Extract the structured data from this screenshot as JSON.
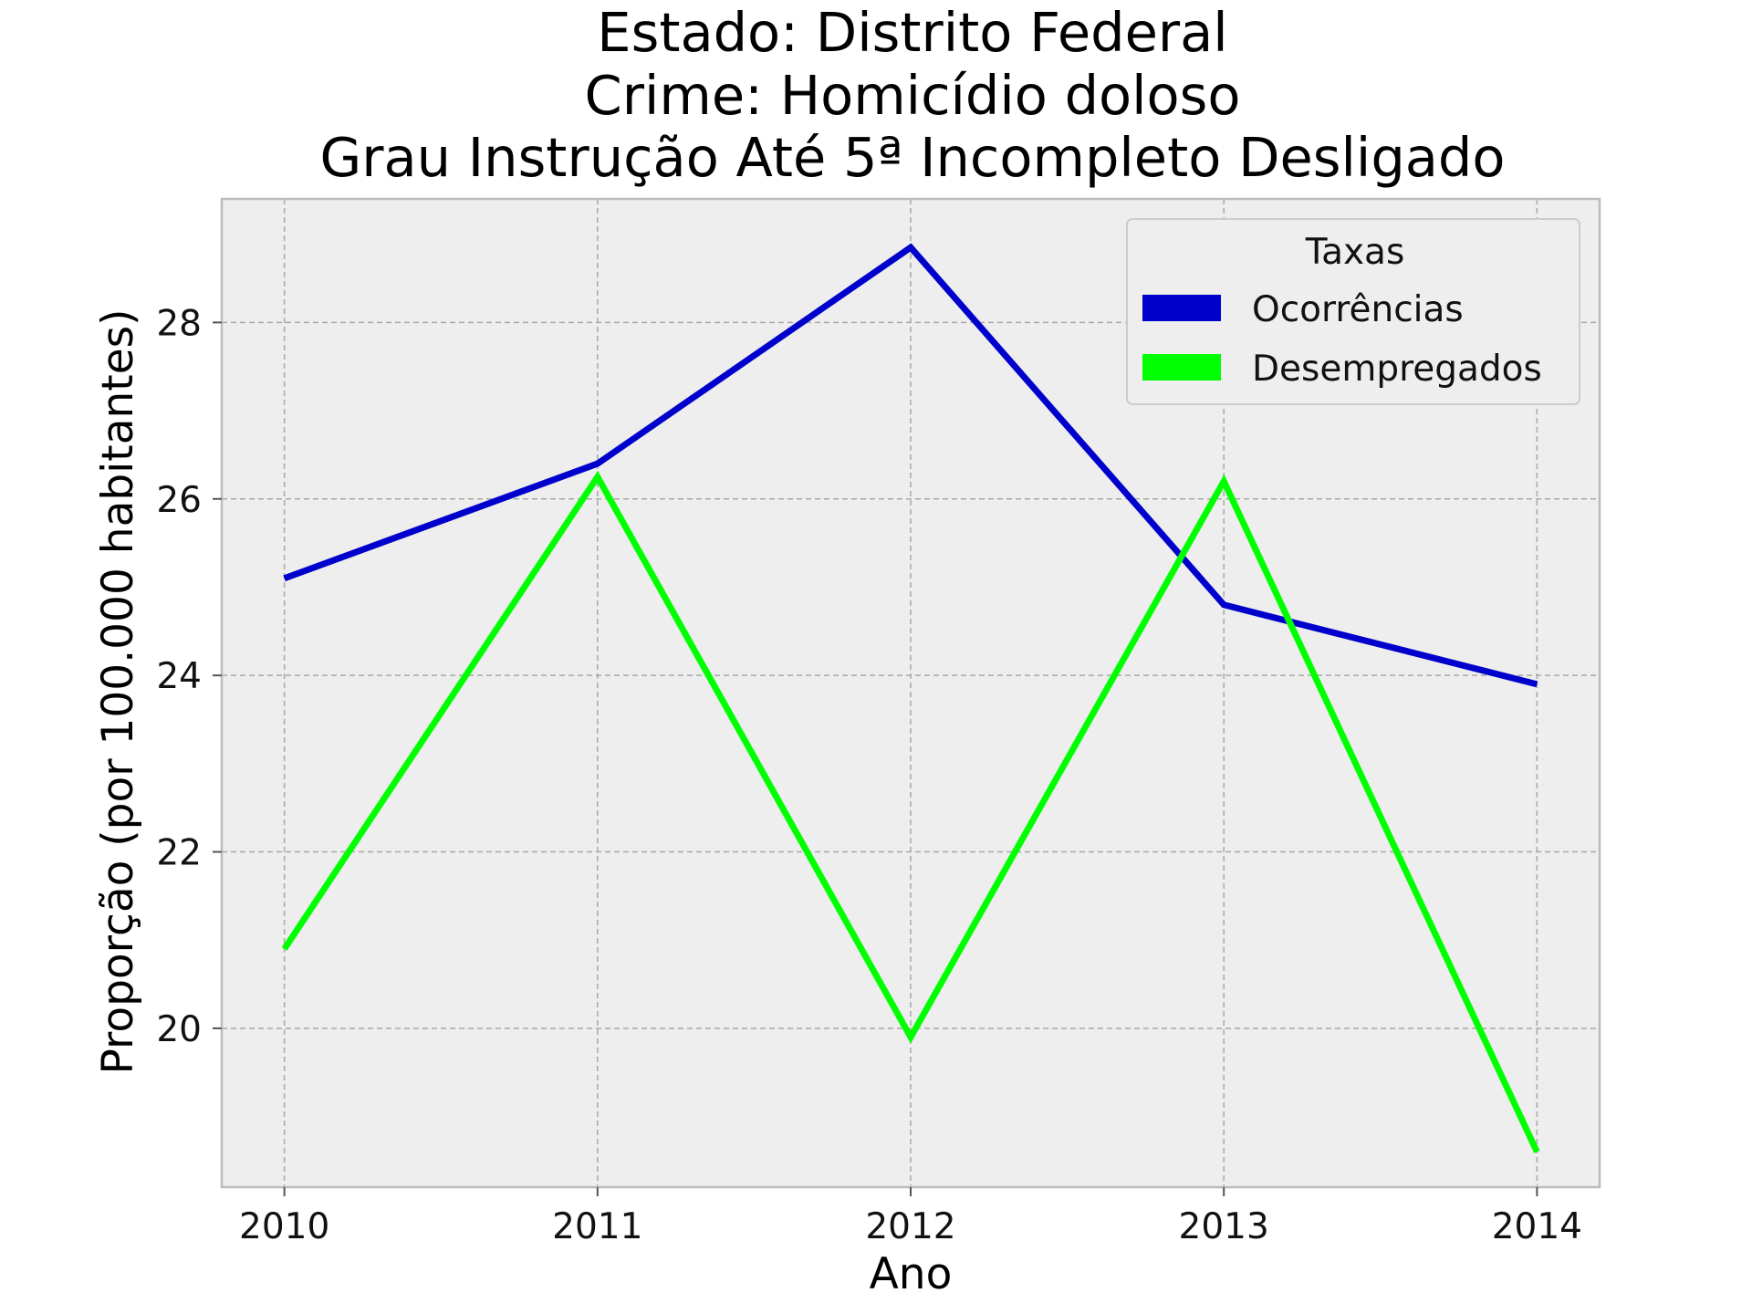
{
  "chart_data": {
    "type": "line",
    "title_lines": [
      "Estado: Distrito Federal",
      "Crime: Homicídio doloso",
      "Grau Instrução  Até 5ª Incompleto   Desligado"
    ],
    "xlabel": "Ano",
    "ylabel": "Proporção (por 100.000 habitantes)",
    "x": [
      2010,
      2011,
      2012,
      2013,
      2014
    ],
    "x_tick_labels": [
      "2010",
      "2011",
      "2012",
      "2013",
      "2014"
    ],
    "xlim": [
      2009.8,
      2014.2
    ],
    "y_ticks": [
      20,
      22,
      24,
      26,
      28
    ],
    "y_tick_labels": [
      "20",
      "22",
      "24",
      "26",
      "28"
    ],
    "ylim": [
      18.2,
      29.4
    ],
    "grid": true,
    "legend": {
      "title": "Taxas",
      "placement": "top-right"
    },
    "series": [
      {
        "name": "Ocorrências",
        "color": "#0000cc",
        "values": [
          25.1,
          26.4,
          28.85,
          24.8,
          23.9
        ]
      },
      {
        "name": "Desempregados",
        "color": "#00ff00",
        "values": [
          20.9,
          26.25,
          19.9,
          26.2,
          18.6
        ]
      }
    ]
  },
  "colors": {
    "plot_background": "#eeeeee",
    "grid": "#a8a8a8",
    "frame": "#bcbcbc"
  }
}
